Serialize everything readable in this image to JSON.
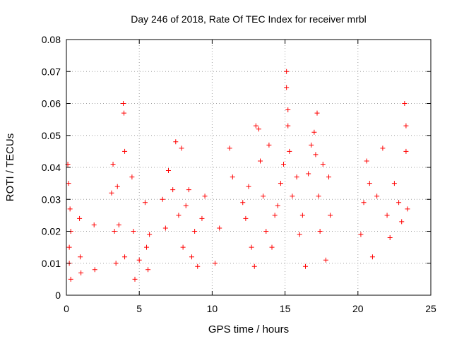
{
  "chart_data": {
    "type": "scatter",
    "title": "Day 246 of 2018, Rate Of TEC Index for receiver mrbl",
    "xlabel": "GPS time / hours",
    "ylabel": "ROTI / TECUs",
    "xlim": [
      0,
      25
    ],
    "ylim": [
      0,
      0.08
    ],
    "xticks": [
      0,
      5,
      10,
      15,
      20,
      25
    ],
    "xtick_labels": [
      "0",
      "5",
      "10",
      "15",
      "20",
      "25"
    ],
    "yticks": [
      0,
      0.01,
      0.02,
      0.03,
      0.04,
      0.05,
      0.06,
      0.07,
      0.08
    ],
    "ytick_labels": [
      "0",
      "0.01",
      "0.02",
      "0.03",
      "0.04",
      "0.05",
      "0.06",
      "0.07",
      "0.08"
    ],
    "grid": true,
    "marker": "+",
    "marker_color": "#ff0000",
    "series": [
      {
        "name": "ROTI",
        "x": [
          0.1,
          0.15,
          0.2,
          0.2,
          0.25,
          0.3,
          0.3,
          0.9,
          0.95,
          1.0,
          1.9,
          1.95,
          3.1,
          3.2,
          3.3,
          3.4,
          3.5,
          3.6,
          3.9,
          3.95,
          4.0,
          4.0,
          4.5,
          4.6,
          4.7,
          5.0,
          5.4,
          5.5,
          5.6,
          5.7,
          6.6,
          6.8,
          7.0,
          7.3,
          7.5,
          7.7,
          7.9,
          8.0,
          8.2,
          8.4,
          8.6,
          8.8,
          9.0,
          9.3,
          9.5,
          10.2,
          10.5,
          11.2,
          11.4,
          12.1,
          12.3,
          12.5,
          12.7,
          12.9,
          13.0,
          13.2,
          13.3,
          13.5,
          13.7,
          13.9,
          14.1,
          14.3,
          14.5,
          14.7,
          14.9,
          15.1,
          15.1,
          15.2,
          15.2,
          15.3,
          15.5,
          15.8,
          16.0,
          16.2,
          16.4,
          16.6,
          16.8,
          17.0,
          17.1,
          17.2,
          17.3,
          17.4,
          17.6,
          17.8,
          18.0,
          18.1,
          20.2,
          20.4,
          20.6,
          20.8,
          21.0,
          21.3,
          21.7,
          22.0,
          22.2,
          22.5,
          22.8,
          23.0,
          23.2,
          23.3,
          23.3,
          23.4
        ],
        "y": [
          0.041,
          0.035,
          0.015,
          0.01,
          0.027,
          0.02,
          0.005,
          0.024,
          0.012,
          0.007,
          0.022,
          0.008,
          0.032,
          0.041,
          0.02,
          0.01,
          0.034,
          0.022,
          0.06,
          0.057,
          0.045,
          0.012,
          0.037,
          0.02,
          0.005,
          0.011,
          0.029,
          0.015,
          0.008,
          0.019,
          0.03,
          0.021,
          0.039,
          0.033,
          0.048,
          0.025,
          0.046,
          0.015,
          0.028,
          0.033,
          0.012,
          0.02,
          0.009,
          0.024,
          0.031,
          0.01,
          0.021,
          0.046,
          0.037,
          0.029,
          0.024,
          0.034,
          0.015,
          0.009,
          0.053,
          0.052,
          0.042,
          0.031,
          0.02,
          0.047,
          0.015,
          0.025,
          0.028,
          0.035,
          0.041,
          0.07,
          0.065,
          0.058,
          0.053,
          0.045,
          0.031,
          0.037,
          0.019,
          0.025,
          0.009,
          0.038,
          0.047,
          0.051,
          0.044,
          0.057,
          0.031,
          0.02,
          0.041,
          0.011,
          0.037,
          0.025,
          0.019,
          0.029,
          0.042,
          0.035,
          0.012,
          0.031,
          0.046,
          0.025,
          0.018,
          0.035,
          0.029,
          0.023,
          0.06,
          0.053,
          0.045,
          0.027
        ]
      }
    ]
  }
}
